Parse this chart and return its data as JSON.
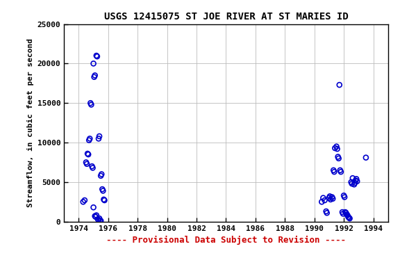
{
  "title": "USGS 12415075 ST JOE RIVER AT ST MARIES ID",
  "xlabel": "---- Provisional Data Subject to Revision ----",
  "ylabel": "Streamflow, in cubic feet per second",
  "xlim": [
    1973,
    1995
  ],
  "ylim": [
    0,
    25000
  ],
  "xticks": [
    1974,
    1976,
    1978,
    1980,
    1982,
    1984,
    1986,
    1988,
    1990,
    1992,
    1994
  ],
  "yticks": [
    0,
    5000,
    10000,
    15000,
    20000,
    25000
  ],
  "marker_color": "#0000CC",
  "marker_facecolor": "none",
  "marker": "o",
  "markersize": 5,
  "background_color": "#ffffff",
  "grid_color": "#bbbbbb",
  "x": [
    1974.3,
    1974.4,
    1974.5,
    1974.55,
    1974.6,
    1974.65,
    1974.7,
    1974.75,
    1974.8,
    1974.85,
    1975.0,
    1975.05,
    1975.1,
    1975.2,
    1975.25,
    1975.35,
    1975.4,
    1975.5,
    1975.55,
    1974.9,
    1974.95,
    1975.6,
    1975.65,
    1975.7,
    1975.75,
    1975.0,
    1975.1,
    1975.15,
    1975.2,
    1975.3,
    1975.35,
    1975.4,
    1975.45,
    1975.5,
    1990.5,
    1990.6,
    1990.7,
    1990.8,
    1990.85,
    1991.0,
    1991.05,
    1991.1,
    1991.2,
    1991.25,
    1991.3,
    1991.35,
    1991.4,
    1991.5,
    1991.55,
    1991.6,
    1991.65,
    1991.7,
    1991.75,
    1991.8,
    1991.9,
    1991.95,
    1992.0,
    1992.05,
    1992.1,
    1992.15,
    1992.2,
    1992.25,
    1992.3,
    1992.35,
    1992.4,
    1992.5,
    1992.55,
    1992.6,
    1992.7,
    1992.75,
    1992.8,
    1992.85,
    1992.9,
    1993.5
  ],
  "y": [
    2500,
    2700,
    7500,
    7300,
    8600,
    8500,
    10300,
    10500,
    15000,
    14800,
    20000,
    18300,
    18500,
    21000,
    20900,
    10500,
    10800,
    5800,
    6000,
    7000,
    6800,
    4100,
    3900,
    2800,
    2700,
    1800,
    700,
    600,
    800,
    300,
    200,
    400,
    150,
    100,
    2500,
    3000,
    2700,
    1300,
    1100,
    3000,
    3200,
    2800,
    3100,
    2900,
    6500,
    6300,
    9300,
    9500,
    9200,
    8200,
    8000,
    17300,
    6500,
    6300,
    1200,
    1000,
    3300,
    3100,
    1200,
    1100,
    900,
    800,
    600,
    500,
    400,
    5000,
    4800,
    5500,
    4700,
    4900,
    5200,
    5400,
    5100,
    8100
  ],
  "title_fontsize": 10,
  "ylabel_fontsize": 8,
  "tick_fontsize": 8,
  "xlabel_color": "#cc0000",
  "xlabel_fontsize": 9
}
